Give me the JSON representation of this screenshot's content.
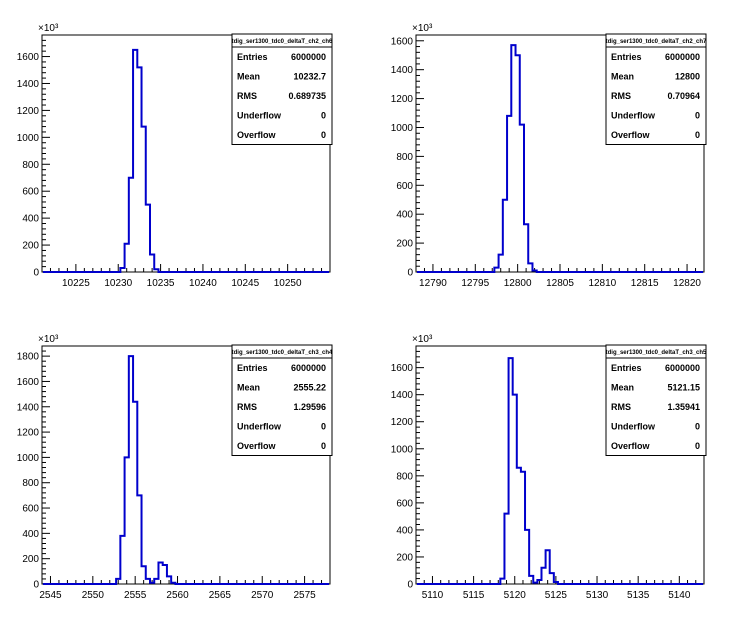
{
  "colors": {
    "hist_line": "#0000cc",
    "frame": "#000000",
    "background": "#ffffff"
  },
  "chart_data": [
    {
      "type": "histogram",
      "stats": {
        "title": "tdig_ser1300_tdc0_deltaT_ch2_ch6",
        "rows": [
          {
            "label": "Entries",
            "value": "6000000"
          },
          {
            "label": "Mean",
            "value": "10232.7"
          },
          {
            "label": "RMS",
            "value": "0.689735"
          },
          {
            "label": "Underflow",
            "value": "0"
          },
          {
            "label": "Overflow",
            "value": "0"
          }
        ]
      },
      "y_exponent_label": "×10³",
      "xlim": [
        10221,
        10255
      ],
      "ylim": [
        0,
        1760
      ],
      "xticks": [
        10225,
        10230,
        10235,
        10240,
        10245,
        10250
      ],
      "yticks": [
        0,
        200,
        400,
        600,
        800,
        1000,
        1200,
        1400,
        1600
      ],
      "ytick_labels": [
        "0",
        "200",
        "400",
        "600",
        "800",
        "1000",
        "1200",
        "1400",
        "1600"
      ],
      "bin_width": 0.5,
      "bins": [
        {
          "x": 10230.5,
          "y": 30
        },
        {
          "x": 10231.0,
          "y": 210
        },
        {
          "x": 10231.5,
          "y": 700
        },
        {
          "x": 10232.0,
          "y": 1650
        },
        {
          "x": 10232.5,
          "y": 1520
        },
        {
          "x": 10233.0,
          "y": 1080
        },
        {
          "x": 10233.5,
          "y": 500
        },
        {
          "x": 10234.0,
          "y": 130
        },
        {
          "x": 10234.5,
          "y": 20
        }
      ]
    },
    {
      "type": "histogram",
      "stats": {
        "title": "tdig_ser1300_tdc0_deltaT_ch2_ch7",
        "rows": [
          {
            "label": "Entries",
            "value": "6000000"
          },
          {
            "label": "Mean",
            "value": "12800"
          },
          {
            "label": "RMS",
            "value": "0.70964"
          },
          {
            "label": "Underflow",
            "value": "0"
          },
          {
            "label": "Overflow",
            "value": "0"
          }
        ]
      },
      "y_exponent_label": "×10³",
      "xlim": [
        12788,
        12822
      ],
      "ylim": [
        0,
        1640
      ],
      "xticks": [
        12790,
        12795,
        12800,
        12805,
        12810,
        12815,
        12820
      ],
      "yticks": [
        0,
        200,
        400,
        600,
        800,
        1000,
        1200,
        1400,
        1600
      ],
      "ytick_labels": [
        "0",
        "200",
        "400",
        "600",
        "800",
        "1000",
        "1200",
        "1400",
        "1600"
      ],
      "bin_width": 0.5,
      "bins": [
        {
          "x": 12797.5,
          "y": 30
        },
        {
          "x": 12798.0,
          "y": 120
        },
        {
          "x": 12798.5,
          "y": 500
        },
        {
          "x": 12799.0,
          "y": 1080
        },
        {
          "x": 12799.5,
          "y": 1570
        },
        {
          "x": 12800.0,
          "y": 1500
        },
        {
          "x": 12800.5,
          "y": 1020
        },
        {
          "x": 12801.0,
          "y": 330
        },
        {
          "x": 12801.5,
          "y": 60
        },
        {
          "x": 12802.0,
          "y": 10
        }
      ]
    },
    {
      "type": "histogram",
      "stats": {
        "title": "tdig_ser1300_tdc0_deltaT_ch3_ch4",
        "rows": [
          {
            "label": "Entries",
            "value": "6000000"
          },
          {
            "label": "Mean",
            "value": "2555.22"
          },
          {
            "label": "RMS",
            "value": "1.29596"
          },
          {
            "label": "Underflow",
            "value": "0"
          },
          {
            "label": "Overflow",
            "value": "0"
          }
        ]
      },
      "y_exponent_label": "×10³",
      "xlim": [
        2544,
        2578
      ],
      "ylim": [
        0,
        1880
      ],
      "xticks": [
        2545,
        2550,
        2555,
        2560,
        2565,
        2570,
        2575
      ],
      "yticks": [
        0,
        200,
        400,
        600,
        800,
        1000,
        1200,
        1400,
        1600,
        1800
      ],
      "ytick_labels": [
        "0",
        "200",
        "400",
        "600",
        "800",
        "1000",
        "1200",
        "1400",
        "1600",
        "1800"
      ],
      "bin_width": 0.5,
      "bins": [
        {
          "x": 2553.0,
          "y": 40
        },
        {
          "x": 2553.5,
          "y": 380
        },
        {
          "x": 2554.0,
          "y": 1000
        },
        {
          "x": 2554.5,
          "y": 1800
        },
        {
          "x": 2555.0,
          "y": 1440
        },
        {
          "x": 2555.5,
          "y": 700
        },
        {
          "x": 2556.0,
          "y": 140
        },
        {
          "x": 2556.5,
          "y": 40
        },
        {
          "x": 2557.0,
          "y": 10
        },
        {
          "x": 2557.5,
          "y": 40
        },
        {
          "x": 2558.0,
          "y": 170
        },
        {
          "x": 2558.5,
          "y": 150
        },
        {
          "x": 2559.0,
          "y": 60
        },
        {
          "x": 2559.5,
          "y": 10
        }
      ]
    },
    {
      "type": "histogram",
      "stats": {
        "title": "tdig_ser1300_tdc0_deltaT_ch3_ch5",
        "rows": [
          {
            "label": "Entries",
            "value": "6000000"
          },
          {
            "label": "Mean",
            "value": "5121.15"
          },
          {
            "label": "RMS",
            "value": "1.35941"
          },
          {
            "label": "Underflow",
            "value": "0"
          },
          {
            "label": "Overflow",
            "value": "0"
          }
        ]
      },
      "y_exponent_label": "×10³",
      "xlim": [
        5108,
        5143
      ],
      "ylim": [
        0,
        1760
      ],
      "xticks": [
        5110,
        5115,
        5120,
        5125,
        5130,
        5135,
        5140
      ],
      "yticks": [
        0,
        200,
        400,
        600,
        800,
        1000,
        1200,
        1400,
        1600
      ],
      "ytick_labels": [
        "0",
        "200",
        "400",
        "600",
        "800",
        "1000",
        "1200",
        "1400",
        "1600"
      ],
      "bin_width": 0.5,
      "bins": [
        {
          "x": 5118.5,
          "y": 40
        },
        {
          "x": 5119.0,
          "y": 520
        },
        {
          "x": 5119.5,
          "y": 1670
        },
        {
          "x": 5120.0,
          "y": 1400
        },
        {
          "x": 5120.5,
          "y": 860
        },
        {
          "x": 5121.0,
          "y": 830
        },
        {
          "x": 5121.5,
          "y": 400
        },
        {
          "x": 5122.0,
          "y": 60
        },
        {
          "x": 5122.5,
          "y": 10
        },
        {
          "x": 5123.0,
          "y": 30
        },
        {
          "x": 5123.5,
          "y": 120
        },
        {
          "x": 5124.0,
          "y": 250
        },
        {
          "x": 5124.5,
          "y": 80
        },
        {
          "x": 5125.0,
          "y": 15
        }
      ]
    }
  ]
}
